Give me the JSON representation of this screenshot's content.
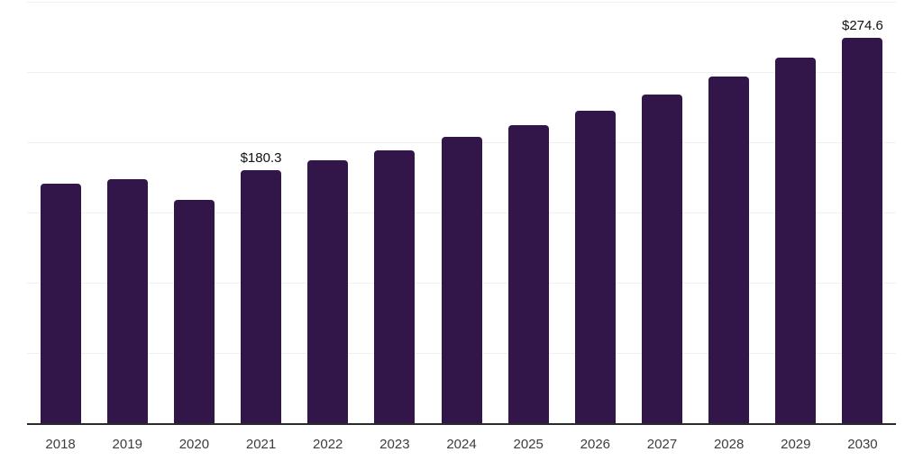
{
  "chart_data": {
    "type": "bar",
    "title": "",
    "xlabel": "",
    "ylabel": "",
    "categories": [
      "2018",
      "2019",
      "2020",
      "2021",
      "2022",
      "2023",
      "2024",
      "2025",
      "2026",
      "2027",
      "2028",
      "2029",
      "2030"
    ],
    "values": [
      170.4,
      174.0,
      159.3,
      180.3,
      186.9,
      194.4,
      203.9,
      212.0,
      222.6,
      234.0,
      246.8,
      260.0,
      274.6
    ],
    "data_labels": {
      "2021": "$180.3",
      "2030": "$274.6"
    },
    "ylim": [
      0,
      300
    ],
    "gridline_values": [
      300,
      250,
      200,
      150,
      100,
      50
    ],
    "grid": true,
    "legend": false,
    "y_axis_labels_visible": false,
    "colors": {
      "bar": "#32164A",
      "axis_line": "#2B2B2B",
      "gridline": "#F0F0F2",
      "tick_label": "#3D3D3D",
      "data_label": "#111111",
      "background": "#FFFFFF"
    }
  }
}
